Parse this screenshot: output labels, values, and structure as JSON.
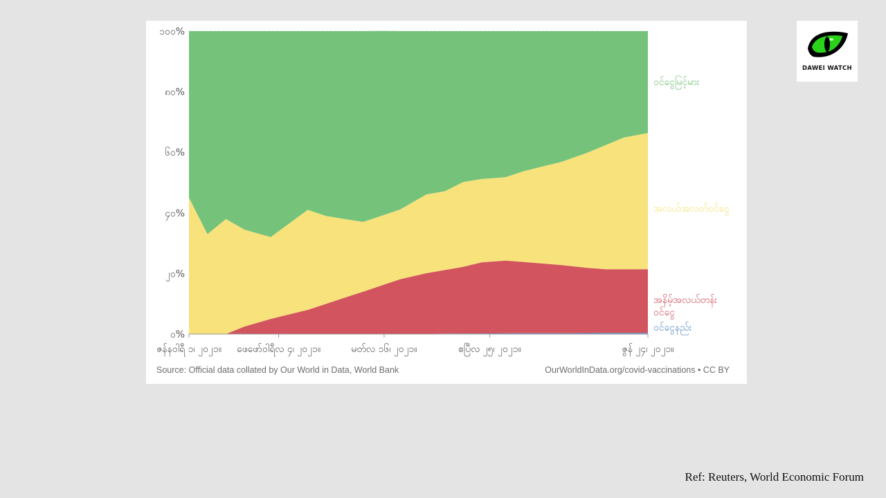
{
  "chart_data": {
    "type": "area",
    "stacked_percent": true,
    "ylim": [
      0,
      100
    ],
    "yticks": [
      "၀%",
      "၂၀%",
      "၄၀%",
      "၆၀%",
      "၈၀%",
      "၁၀၀%"
    ],
    "x_dates": [
      "2021-01-01",
      "2021-01-08",
      "2021-01-15",
      "2021-01-22",
      "2021-02-01",
      "2021-02-08",
      "2021-02-15",
      "2021-02-22",
      "2021-03-01",
      "2021-03-08",
      "2021-03-15",
      "2021-03-22",
      "2021-04-01",
      "2021-04-08",
      "2021-04-15",
      "2021-04-22",
      "2021-05-01",
      "2021-05-08",
      "2021-05-15",
      "2021-05-22",
      "2021-06-01",
      "2021-06-08",
      "2021-06-15",
      "2021-06-24"
    ],
    "xtick_labels": [
      {
        "date": "2021-01-01",
        "label": "ဇန်နဝါရီ ၁၊ ၂၀၂၁။"
      },
      {
        "date": "2021-02-04",
        "label": "ဖေဖော်ဝါရီလ ၄၊ ၂၀၂၁။"
      },
      {
        "date": "2021-03-16",
        "label": "မတ်လ ၁၆၊ ၂၀၂၁။"
      },
      {
        "date": "2021-04-25",
        "label": "ဧပြီလ ၂၅၊ ၂၀၂၁။"
      },
      {
        "date": "2021-06-24",
        "label": "ဇွန် ၂၄၊ ၂၀၂၁။"
      }
    ],
    "series": [
      {
        "name": "ဝင်ငွေနည်း",
        "color": "#5b8fc9",
        "values": [
          0,
          0,
          0,
          0,
          0,
          0,
          0,
          0,
          0,
          0,
          0.05,
          0.1,
          0.1,
          0.15,
          0.2,
          0.2,
          0.25,
          0.3,
          0.3,
          0.3,
          0.35,
          0.4,
          0.4,
          0.4
        ]
      },
      {
        "name": "အနိမ့်အလယ်တန်းဝင်ငွေ",
        "color": "#d2545f",
        "values": [
          0,
          0,
          0,
          2.5,
          5,
          6.5,
          8,
          10,
          12,
          14,
          16,
          18,
          20,
          21,
          22,
          23.5,
          24,
          23.5,
          23,
          22.5,
          21.5,
          21,
          21,
          21
        ]
      },
      {
        "name": "အလယ်အလတ်ဝင်ငွေ",
        "color": "#f7e27c",
        "values": [
          45,
          33,
          38,
          32,
          27,
          30,
          33,
          29,
          26,
          23,
          23,
          23,
          26,
          26,
          28,
          27.5,
          27.5,
          30,
          32,
          34,
          38,
          41,
          43.5,
          45
        ]
      },
      {
        "name": "ဝင်ငွေမြင့်မား",
        "color": "#75c37b",
        "values": [
          55,
          67,
          62,
          65.5,
          68,
          63.5,
          59,
          61,
          62,
          63,
          61,
          58.9,
          53.9,
          52.85,
          49.8,
          48.8,
          48.25,
          46.2,
          44.7,
          43.2,
          40.15,
          37.6,
          35.1,
          33.6
        ]
      }
    ]
  },
  "footer": {
    "source": "Source: Official data collated by Our World in Data, World Bank",
    "link": "OurWorldInData.org/covid-vaccinations • CC BY"
  },
  "logo": {
    "text": "DAWEI WATCH",
    "icon": "green-eye-icon"
  },
  "ref": "Ref: Reuters, World Economic Forum"
}
